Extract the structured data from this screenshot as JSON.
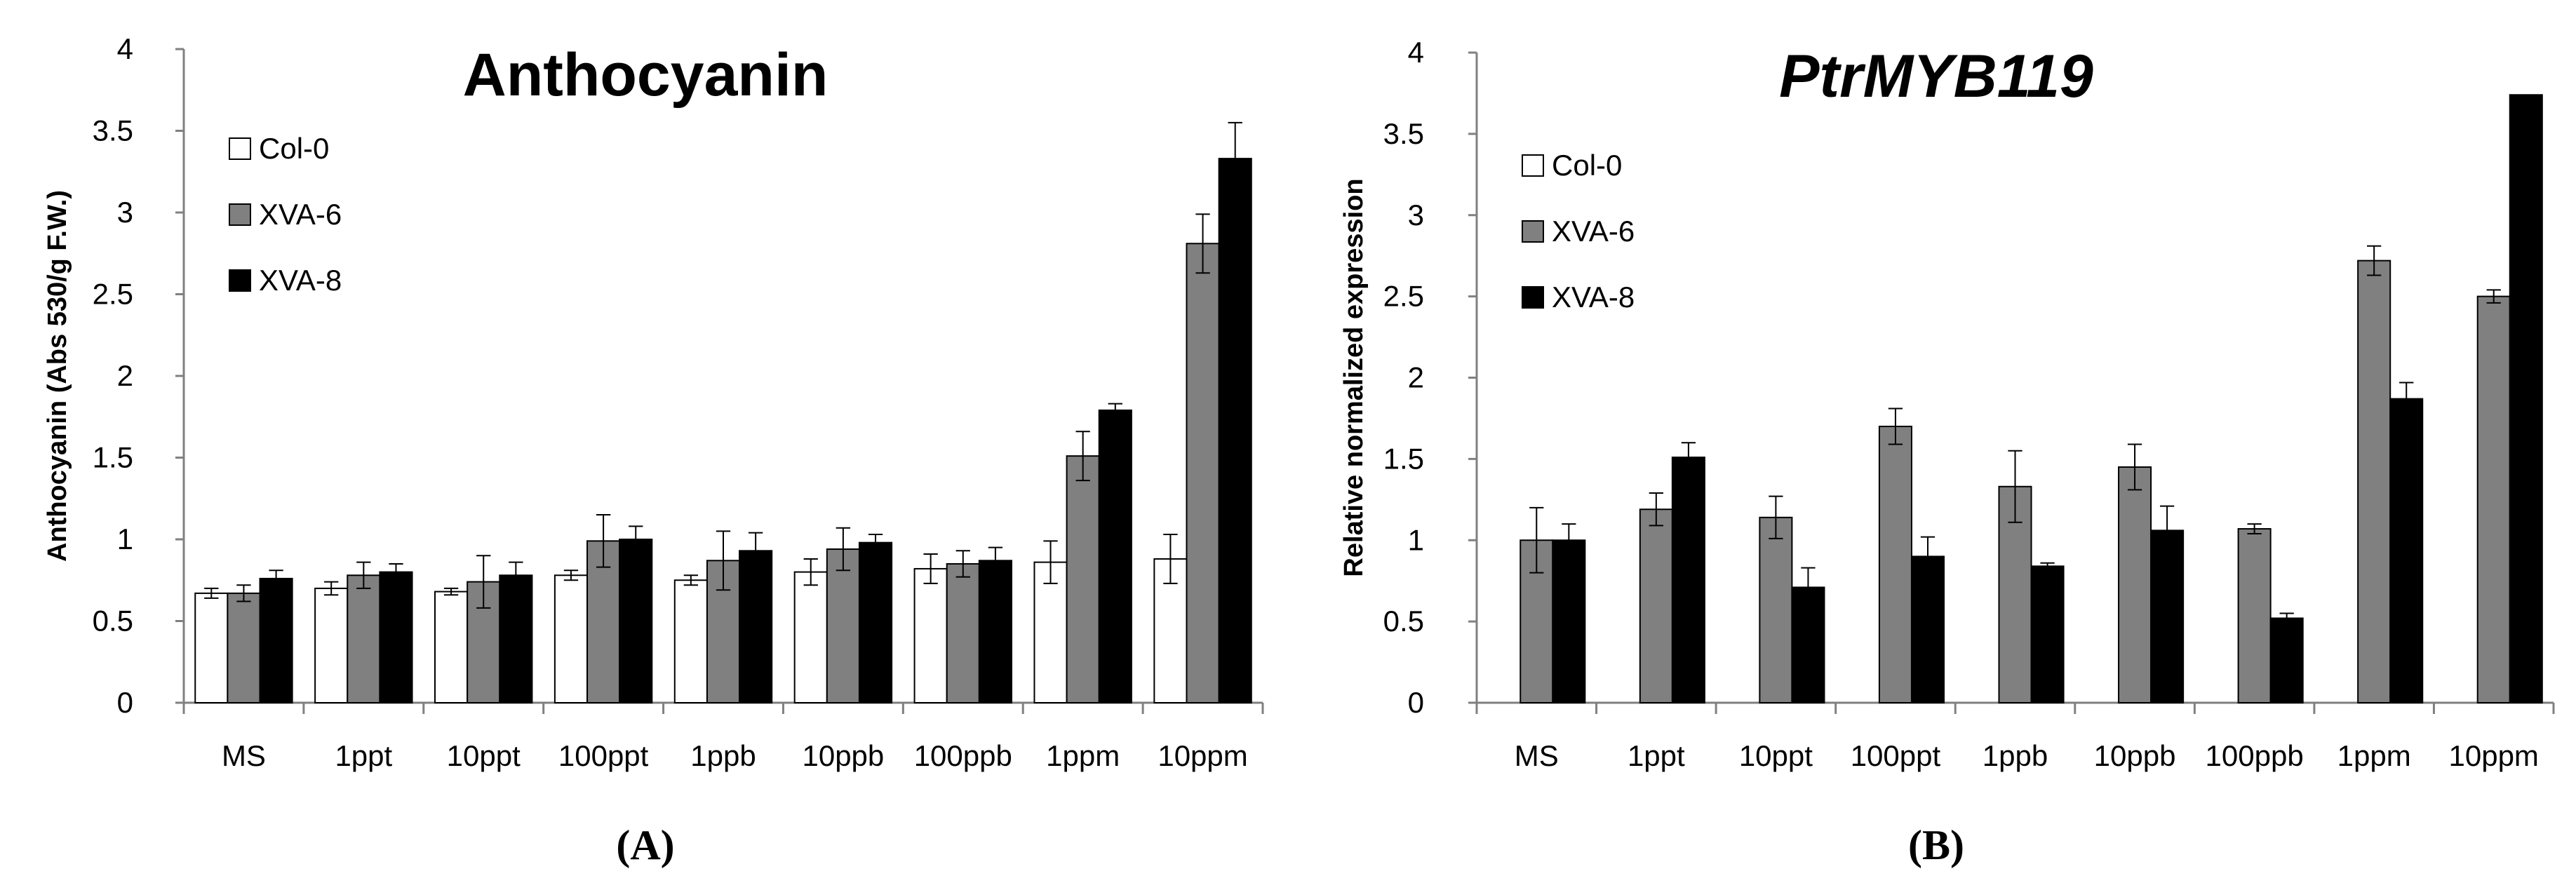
{
  "chart_data": [
    {
      "type": "bar",
      "title": "Anthocyanin",
      "title_style": "bold",
      "panel_label": "(A)",
      "xlabel": "",
      "ylabel": "Anthocyanin (Abs 530/g F.W.)",
      "ylim": [
        0,
        4
      ],
      "yticks": [
        "0",
        "0.5",
        "1",
        "1.5",
        "2",
        "2.5",
        "3",
        "3.5",
        "4"
      ],
      "grid": false,
      "legend_position": "top-left",
      "categories": [
        "MS",
        "1ppt",
        "10ppt",
        "100ppt",
        "1ppb",
        "10ppb",
        "100ppb",
        "1ppm",
        "10ppm"
      ],
      "series": [
        {
          "name": "Col-0",
          "color": "#ffffff",
          "values": [
            0.67,
            0.7,
            0.68,
            0.78,
            0.75,
            0.8,
            0.82,
            0.86,
            0.88
          ],
          "errors": [
            0.03,
            0.04,
            0.02,
            0.03,
            0.03,
            0.08,
            0.09,
            0.13,
            0.15
          ]
        },
        {
          "name": "XVA-6",
          "color": "#808080",
          "values": [
            0.67,
            0.78,
            0.74,
            0.99,
            0.87,
            0.94,
            0.85,
            1.51,
            2.81
          ],
          "errors": [
            0.05,
            0.08,
            0.16,
            0.16,
            0.18,
            0.13,
            0.08,
            0.15,
            0.18
          ]
        },
        {
          "name": "XVA-8",
          "color": "#000000",
          "values": [
            0.76,
            0.8,
            0.78,
            1.0,
            0.93,
            0.98,
            0.87,
            1.79,
            3.33
          ],
          "errors": [
            0.05,
            0.05,
            0.08,
            0.08,
            0.11,
            0.05,
            0.08,
            0.04,
            0.22
          ]
        }
      ]
    },
    {
      "type": "bar",
      "title": "PtrMYB119",
      "title_style": "bold-italic",
      "panel_label": "(B)",
      "xlabel": "",
      "ylabel": "Relative normalized expression",
      "ylim": [
        0,
        4
      ],
      "yticks": [
        "0",
        "0.5",
        "1",
        "1.5",
        "2",
        "2.5",
        "3",
        "3.5",
        "4"
      ],
      "grid": false,
      "legend_position": "top-left",
      "categories": [
        "MS",
        "1ppt",
        "10ppt",
        "100ppt",
        "1ppb",
        "10ppb",
        "100ppb",
        "1ppm",
        "10ppm"
      ],
      "series": [
        {
          "name": "Col-0",
          "color": "#ffffff",
          "values": [
            0,
            0,
            0,
            0,
            0,
            0,
            0,
            0,
            0
          ],
          "errors": [
            0,
            0,
            0,
            0,
            0,
            0,
            0,
            0,
            0
          ]
        },
        {
          "name": "XVA-6",
          "color": "#808080",
          "values": [
            1.0,
            1.19,
            1.14,
            1.7,
            1.33,
            1.45,
            1.07,
            2.72,
            2.5
          ],
          "errors": [
            0.2,
            0.1,
            0.13,
            0.11,
            0.22,
            0.14,
            0.03,
            0.09,
            0.04
          ]
        },
        {
          "name": "XVA-8",
          "color": "#000000",
          "values": [
            1.0,
            1.51,
            0.71,
            0.9,
            0.84,
            1.06,
            0.52,
            1.87,
            3.74
          ],
          "errors": [
            0.1,
            0.09,
            0.12,
            0.12,
            0.02,
            0.15,
            0.03,
            0.1,
            0
          ]
        }
      ]
    }
  ]
}
